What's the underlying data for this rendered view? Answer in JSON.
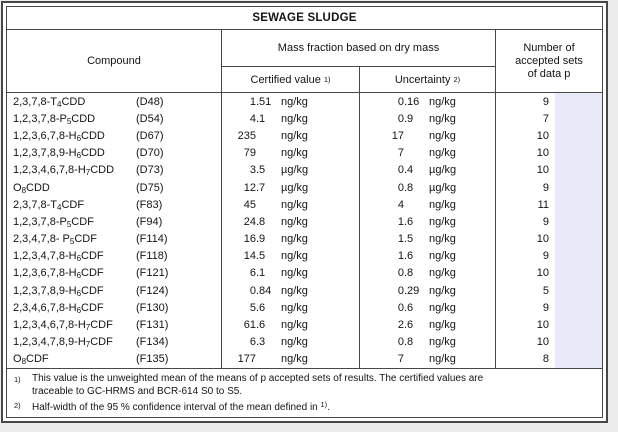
{
  "page": {
    "title": "SEWAGE SLUDGE"
  },
  "header": {
    "compound": "Compound",
    "mass_fraction": "Mass fraction based on dry mass",
    "certified_value": "Certified value",
    "certified_value_note_ref": "1)",
    "uncertainty": "Uncertainty",
    "uncertainty_note_ref": "2)",
    "accepted_sets": "Number of accepted sets of data p"
  },
  "highlight_color": "#e8ebf7",
  "rows": [
    {
      "name_pre": "2,3,7,8-T",
      "name_sub": "4",
      "name_post": "CDD",
      "code": "(D48)",
      "cv_int": "1",
      "cv_frac": ".51",
      "cv_unit": "ng/kg",
      "un_int": "0",
      "un_frac": ".16",
      "un_unit": "ng/kg",
      "p": "9"
    },
    {
      "name_pre": "1,2,3,7,8-P",
      "name_sub": "5",
      "name_post": "CDD",
      "code": "(D54)",
      "cv_int": "4",
      "cv_frac": ".1",
      "cv_unit": "ng/kg",
      "un_int": "0",
      "un_frac": ".9",
      "un_unit": "ng/kg",
      "p": "7"
    },
    {
      "name_pre": "1,2,3,6,7,8-H",
      "name_sub": "6",
      "name_post": "CDD",
      "code": "(D67)",
      "cv_int": "235",
      "cv_frac": "",
      "cv_unit": "ng/kg",
      "un_int": "17",
      "un_frac": "",
      "un_unit": "ng/kg",
      "p": "10"
    },
    {
      "name_pre": "1,2,3,7,8,9-H",
      "name_sub": "6",
      "name_post": "CDD",
      "code": "(D70)",
      "cv_int": "79",
      "cv_frac": "",
      "cv_unit": "ng/kg",
      "un_int": "7",
      "un_frac": "",
      "un_unit": "ng/kg",
      "p": "10"
    },
    {
      "name_pre": "1,2,3,4,6,7,8-H",
      "name_sub": "7",
      "name_post": "CDD",
      "code": "(D73)",
      "cv_int": "3",
      "cv_frac": ".5",
      "cv_unit": "µg/kg",
      "un_int": "0",
      "un_frac": ".4",
      "un_unit": "µg/kg",
      "p": "10"
    },
    {
      "name_pre": "O",
      "name_sub": "8",
      "name_post": "CDD",
      "code": "(D75)",
      "cv_int": "12",
      "cv_frac": ".7",
      "cv_unit": "µg/kg",
      "un_int": "0",
      "un_frac": ".8",
      "un_unit": "µg/kg",
      "p": "9"
    },
    {
      "name_pre": "2,3,7,8-T",
      "name_sub": "4",
      "name_post": "CDF",
      "code": "(F83)",
      "cv_int": "45",
      "cv_frac": "",
      "cv_unit": "ng/kg",
      "un_int": "4",
      "un_frac": "",
      "un_unit": "ng/kg",
      "p": "11"
    },
    {
      "name_pre": "1,2,3,7,8-P",
      "name_sub": "5",
      "name_post": "CDF",
      "code": "(F94)",
      "cv_int": "24",
      "cv_frac": ".8",
      "cv_unit": "ng/kg",
      "un_int": "1",
      "un_frac": ".6",
      "un_unit": "ng/kg",
      "p": "9"
    },
    {
      "name_pre": "2,3,4,7,8- P",
      "name_sub": "5",
      "name_post": "CDF",
      "code": "(F114)",
      "cv_int": "16",
      "cv_frac": ".9",
      "cv_unit": "ng/kg",
      "un_int": "1",
      "un_frac": ".5",
      "un_unit": "ng/kg",
      "p": "10"
    },
    {
      "name_pre": "1,2,3,4,7,8-H",
      "name_sub": "6",
      "name_post": "CDF",
      "code": "(F118)",
      "cv_int": "14",
      "cv_frac": ".5",
      "cv_unit": "ng/kg",
      "un_int": "1",
      "un_frac": ".6",
      "un_unit": "ng/kg",
      "p": "9"
    },
    {
      "name_pre": "1,2,3,6,7,8-H",
      "name_sub": "6",
      "name_post": "CDF",
      "code": "(F121)",
      "cv_int": "6",
      "cv_frac": ".1",
      "cv_unit": "ng/kg",
      "un_int": "0",
      "un_frac": ".8",
      "un_unit": "ng/kg",
      "p": "10"
    },
    {
      "name_pre": "1,2,3,7,8,9-H",
      "name_sub": "6",
      "name_post": "CDF",
      "code": "(F124)",
      "cv_int": "0",
      "cv_frac": ".84",
      "cv_unit": "ng/kg",
      "un_int": "0",
      "un_frac": ".29",
      "un_unit": "ng/kg",
      "p": "5"
    },
    {
      "name_pre": "2,3,4,6,7,8-H",
      "name_sub": "6",
      "name_post": "CDF",
      "code": "(F130)",
      "cv_int": "5",
      "cv_frac": ".6",
      "cv_unit": "ng/kg",
      "un_int": "0",
      "un_frac": ".6",
      "un_unit": "ng/kg",
      "p": "9"
    },
    {
      "name_pre": "1,2,3,4,6,7,8-H",
      "name_sub": "7",
      "name_post": "CDF",
      "code": "(F131)",
      "cv_int": "61",
      "cv_frac": ".6",
      "cv_unit": "ng/kg",
      "un_int": "2",
      "un_frac": ".6",
      "un_unit": "ng/kg",
      "p": "10"
    },
    {
      "name_pre": "1,2,3,4,7,8,9-H",
      "name_sub": "7",
      "name_post": "CDF",
      "code": "(F134)",
      "cv_int": "6",
      "cv_frac": ".3",
      "cv_unit": "ng/kg",
      "un_int": "0",
      "un_frac": ".8",
      "un_unit": "ng/kg",
      "p": "10"
    },
    {
      "name_pre": "O",
      "name_sub": "8",
      "name_post": "CDF",
      "code": "(F135)",
      "cv_int": "177",
      "cv_frac": "",
      "cv_unit": "ng/kg",
      "un_int": "7",
      "un_frac": "",
      "un_unit": "ng/kg",
      "p": "8"
    }
  ],
  "notes": {
    "note1": {
      "marker": "1)",
      "line1": "This value is the unweighted mean of the means of p accepted sets of results. The certified values are",
      "line2": "traceable to GC-HRMS and BCR-614 S0 to S5."
    },
    "note2": {
      "marker": "2)",
      "text": "Half-width of the 95 % confidence interval of the mean defined in ",
      "sup": "1)",
      "tail": "."
    }
  }
}
